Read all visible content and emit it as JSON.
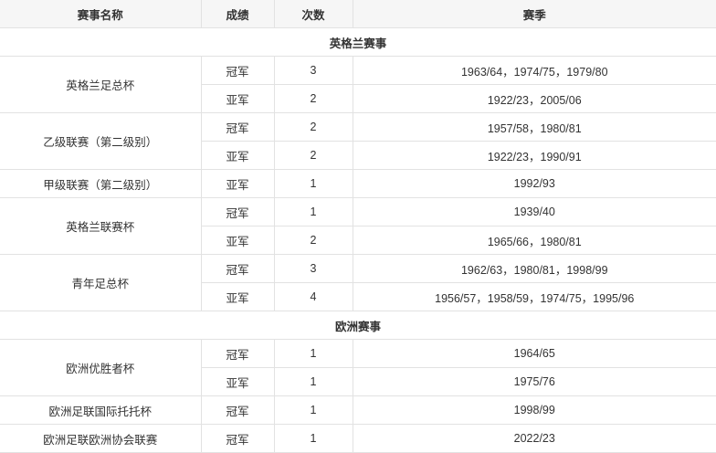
{
  "table": {
    "columns": [
      "赛事名称",
      "成绩",
      "次数",
      "赛季"
    ],
    "sections": [
      {
        "title": "英格兰赛事",
        "competitions": [
          {
            "name": "英格兰足总杯",
            "results": [
              {
                "result": "冠军",
                "count": "3",
                "seasons": "1963/64，1974/75，1979/80"
              },
              {
                "result": "亚军",
                "count": "2",
                "seasons": "1922/23，2005/06"
              }
            ]
          },
          {
            "name": "乙级联赛（第二级别）",
            "results": [
              {
                "result": "冠军",
                "count": "2",
                "seasons": "1957/58，1980/81"
              },
              {
                "result": "亚军",
                "count": "2",
                "seasons": "1922/23，1990/91"
              }
            ]
          },
          {
            "name": "甲级联赛（第二级别）",
            "results": [
              {
                "result": "亚军",
                "count": "1",
                "seasons": "1992/93"
              }
            ]
          },
          {
            "name": "英格兰联赛杯",
            "results": [
              {
                "result": "冠军",
                "count": "1",
                "seasons": "1939/40"
              },
              {
                "result": "亚军",
                "count": "2",
                "seasons": "1965/66，1980/81"
              }
            ]
          },
          {
            "name": "青年足总杯",
            "results": [
              {
                "result": "冠军",
                "count": "3",
                "seasons": "1962/63，1980/81，1998/99"
              },
              {
                "result": "亚军",
                "count": "4",
                "seasons": "1956/57，1958/59，1974/75，1995/96"
              }
            ]
          }
        ]
      },
      {
        "title": "欧洲赛事",
        "competitions": [
          {
            "name": "欧洲优胜者杯",
            "results": [
              {
                "result": "冠军",
                "count": "1",
                "seasons": "1964/65"
              },
              {
                "result": "亚军",
                "count": "1",
                "seasons": "1975/76"
              }
            ]
          },
          {
            "name": "欧洲足联国际托托杯",
            "results": [
              {
                "result": "冠军",
                "count": "1",
                "seasons": "1998/99"
              }
            ]
          },
          {
            "name": "欧洲足联欧洲协会联赛",
            "results": [
              {
                "result": "冠军",
                "count": "1",
                "seasons": "2022/23"
              }
            ]
          }
        ]
      }
    ]
  },
  "colors": {
    "header_bg": "#f6f6f6",
    "border": "#e2e2e2",
    "text": "#333333"
  }
}
